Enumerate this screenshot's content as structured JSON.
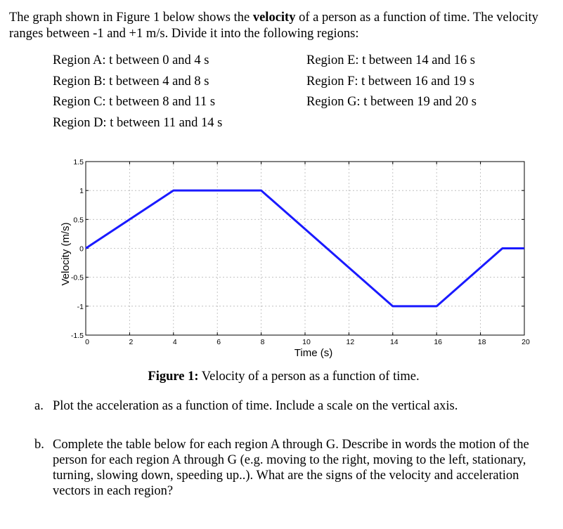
{
  "intro": {
    "part1": "The graph shown in Figure 1 below shows the ",
    "bold": "velocity",
    "part2": " of a person as a function of time.  The velocity ranges between -1 and +1 m/s.  Divide it into the following regions:"
  },
  "regions": {
    "left": [
      "Region A:  t between 0 and 4 s",
      "Region B:  t between 4 and 8 s",
      "Region C:  t between 8 and 11 s",
      "Region D:  t between 11 and 14 s"
    ],
    "right": [
      "Region E:  t between 14 and 16 s",
      "Region F:  t between 16 and 19 s",
      "Region G:  t between 19 and 20 s"
    ]
  },
  "chart_data": {
    "type": "line",
    "title": "",
    "xlabel": "Time (s)",
    "ylabel": "Velocity (m/s)",
    "xlim": [
      0,
      20
    ],
    "ylim": [
      -1.5,
      1.5
    ],
    "x_ticks": [
      "0",
      "2",
      "4",
      "6",
      "8",
      "10",
      "12",
      "14",
      "16",
      "18",
      "20"
    ],
    "y_ticks": [
      "1.5",
      "1",
      "0.5",
      "0",
      "-0.5",
      "-1",
      "-1.5"
    ],
    "grid": true,
    "series": [
      {
        "color": "#1a1aff",
        "x": [
          0,
          4,
          8,
          14,
          16,
          19,
          20
        ],
        "y": [
          0,
          1,
          1,
          -1,
          -1,
          0,
          0
        ]
      }
    ]
  },
  "caption": {
    "bold": "Figure 1:",
    "text": " Velocity of a person as a function of time."
  },
  "questions": {
    "a": {
      "marker": "a.",
      "text": "Plot the acceleration as a function of time.  Include a scale on the vertical axis."
    },
    "b": {
      "marker": "b.",
      "text": "Complete the table below for each region A through G.  Describe in words the motion of the person for each region A through G (e.g. moving to the right, moving to the left, stationary, turning, slowing down, speeding up..).  What are the signs of the velocity and acceleration vectors in each region?"
    }
  }
}
